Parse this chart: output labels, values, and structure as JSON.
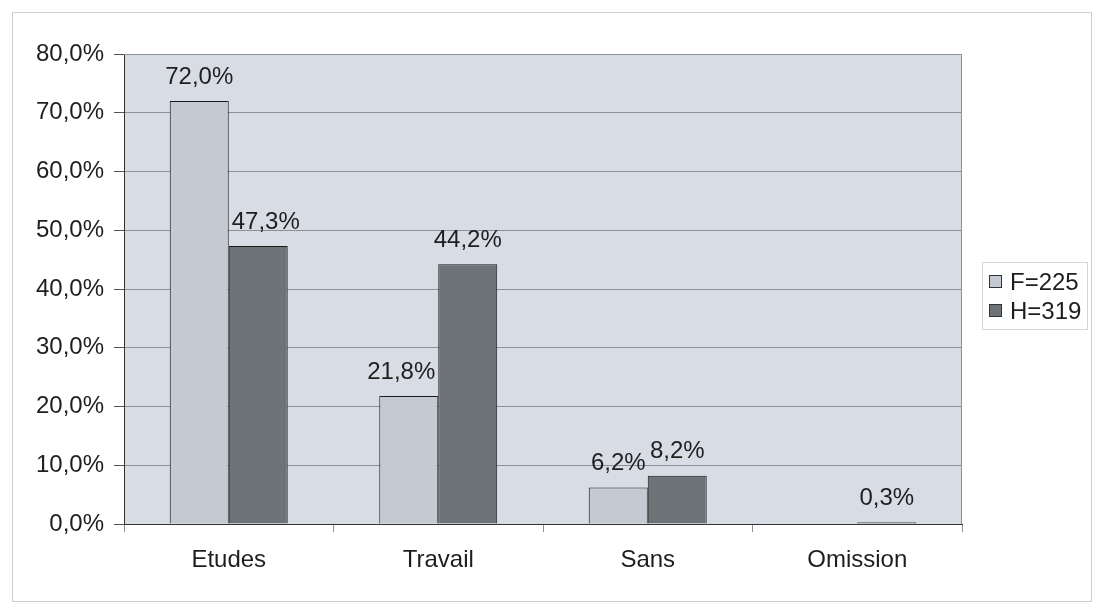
{
  "chart_data": {
    "type": "bar",
    "categories": [
      "Etudes",
      "Travail",
      "Sans",
      "Omission"
    ],
    "series": [
      {
        "name": "F=225",
        "color": "#c5c9d2",
        "values": [
          72.0,
          21.8,
          6.2,
          0
        ],
        "value_labels": [
          "72,0%",
          "21,8%",
          "6,2%",
          null
        ]
      },
      {
        "name": "H=319",
        "color": "#6e7378",
        "values": [
          47.3,
          44.2,
          8.2,
          0.3
        ],
        "value_labels": [
          "47,3%",
          "44,2%",
          "8,2%",
          "0,3%"
        ]
      }
    ],
    "ylim": [
      0,
      80
    ],
    "yticks": [
      {
        "value": 0,
        "label": "0,0%"
      },
      {
        "value": 10,
        "label": "10,0%"
      },
      {
        "value": 20,
        "label": "20,0%"
      },
      {
        "value": 30,
        "label": "30,0%"
      },
      {
        "value": 40,
        "label": "40,0%"
      },
      {
        "value": 50,
        "label": "50,0%"
      },
      {
        "value": 60,
        "label": "60,0%"
      },
      {
        "value": 70,
        "label": "70,0%"
      },
      {
        "value": 80,
        "label": "80,0%"
      }
    ],
    "grid": "y",
    "legend": "right"
  }
}
